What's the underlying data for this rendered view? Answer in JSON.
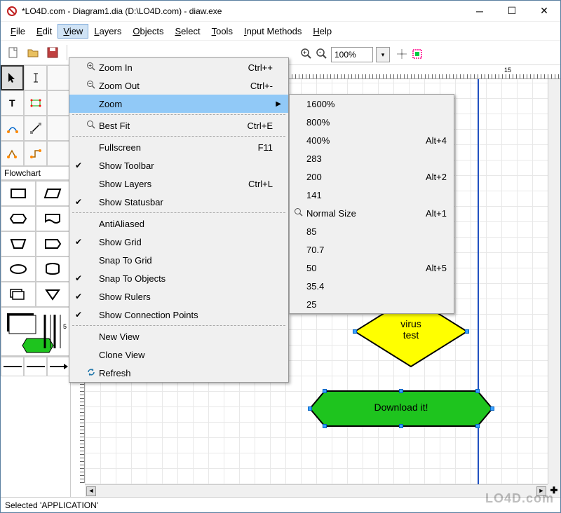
{
  "window": {
    "title": "*LO4D.com - Diagram1.dia (D:\\LO4D.com) - diaw.exe"
  },
  "menubar": [
    "File",
    "Edit",
    "View",
    "Layers",
    "Objects",
    "Select",
    "Tools",
    "Input Methods",
    "Help"
  ],
  "activeMenu": "View",
  "viewMenu": {
    "items": [
      {
        "icon": "zoom-in",
        "label": "Zoom In",
        "shortcut": "Ctrl++",
        "underline": 5
      },
      {
        "icon": "zoom-out",
        "label": "Zoom Out",
        "shortcut": "Ctrl+-",
        "underline": 5
      },
      {
        "icon": "",
        "label": "Zoom",
        "submenu": true,
        "hilite": true,
        "underline": 0
      },
      {
        "sep": true
      },
      {
        "icon": "zoom-fit",
        "label": "Best Fit",
        "shortcut": "Ctrl+E",
        "underline": 5
      },
      {
        "sep": true
      },
      {
        "label": "Fullscreen",
        "shortcut": "F11",
        "underline": 0
      },
      {
        "check": true,
        "label": "Show Toolbar",
        "underline": 5
      },
      {
        "label": "Show Layers",
        "shortcut": "Ctrl+L"
      },
      {
        "check": true,
        "label": "Show Statusbar",
        "underline": 5
      },
      {
        "sep": true
      },
      {
        "label": "AntiAliased",
        "underline": 0
      },
      {
        "check": true,
        "label": "Show Grid",
        "underline": 5
      },
      {
        "label": "Snap To Grid",
        "underline": 0
      },
      {
        "check": true,
        "label": "Snap To Objects",
        "underline": 8
      },
      {
        "check": true,
        "label": "Show Rulers",
        "underline": 5
      },
      {
        "check": true,
        "label": "Show Connection Points",
        "underline": 5
      },
      {
        "sep": true
      },
      {
        "label": "New View",
        "underline": 4
      },
      {
        "label": "Clone View"
      },
      {
        "icon": "refresh",
        "label": "Refresh",
        "underline": 0
      }
    ]
  },
  "zoomSubmenu": [
    {
      "label": "1600%"
    },
    {
      "label": "800%"
    },
    {
      "label": "400%",
      "shortcut": "Alt+4"
    },
    {
      "label": "283"
    },
    {
      "label": "200",
      "shortcut": "Alt+2"
    },
    {
      "label": "141"
    },
    {
      "icon": "zoom",
      "label": "Normal Size",
      "shortcut": "Alt+1",
      "underline": 0
    },
    {
      "label": "85"
    },
    {
      "label": "70.7"
    },
    {
      "label": "50",
      "shortcut": "Alt+5"
    },
    {
      "label": "35.4"
    },
    {
      "label": "25"
    }
  ],
  "toolbar": {
    "zoom_value": "100%"
  },
  "flowchart_label": "Flowchart",
  "canvas_shapes": {
    "diamond_text1": "virus",
    "diamond_text2": "test",
    "hex_text": "Download it!",
    "diamond_color": "#ffff00",
    "hex_color": "#1ec41e"
  },
  "ruler_marks": [
    "15"
  ],
  "statusbar": "Selected 'APPLICATION'",
  "watermark": "LO4D.com",
  "colors": {
    "highlight": "#91c9f7",
    "menu_active_bg": "#d0e3f5",
    "grid": "#e8e8e8",
    "page_edge": "#2050c0"
  }
}
